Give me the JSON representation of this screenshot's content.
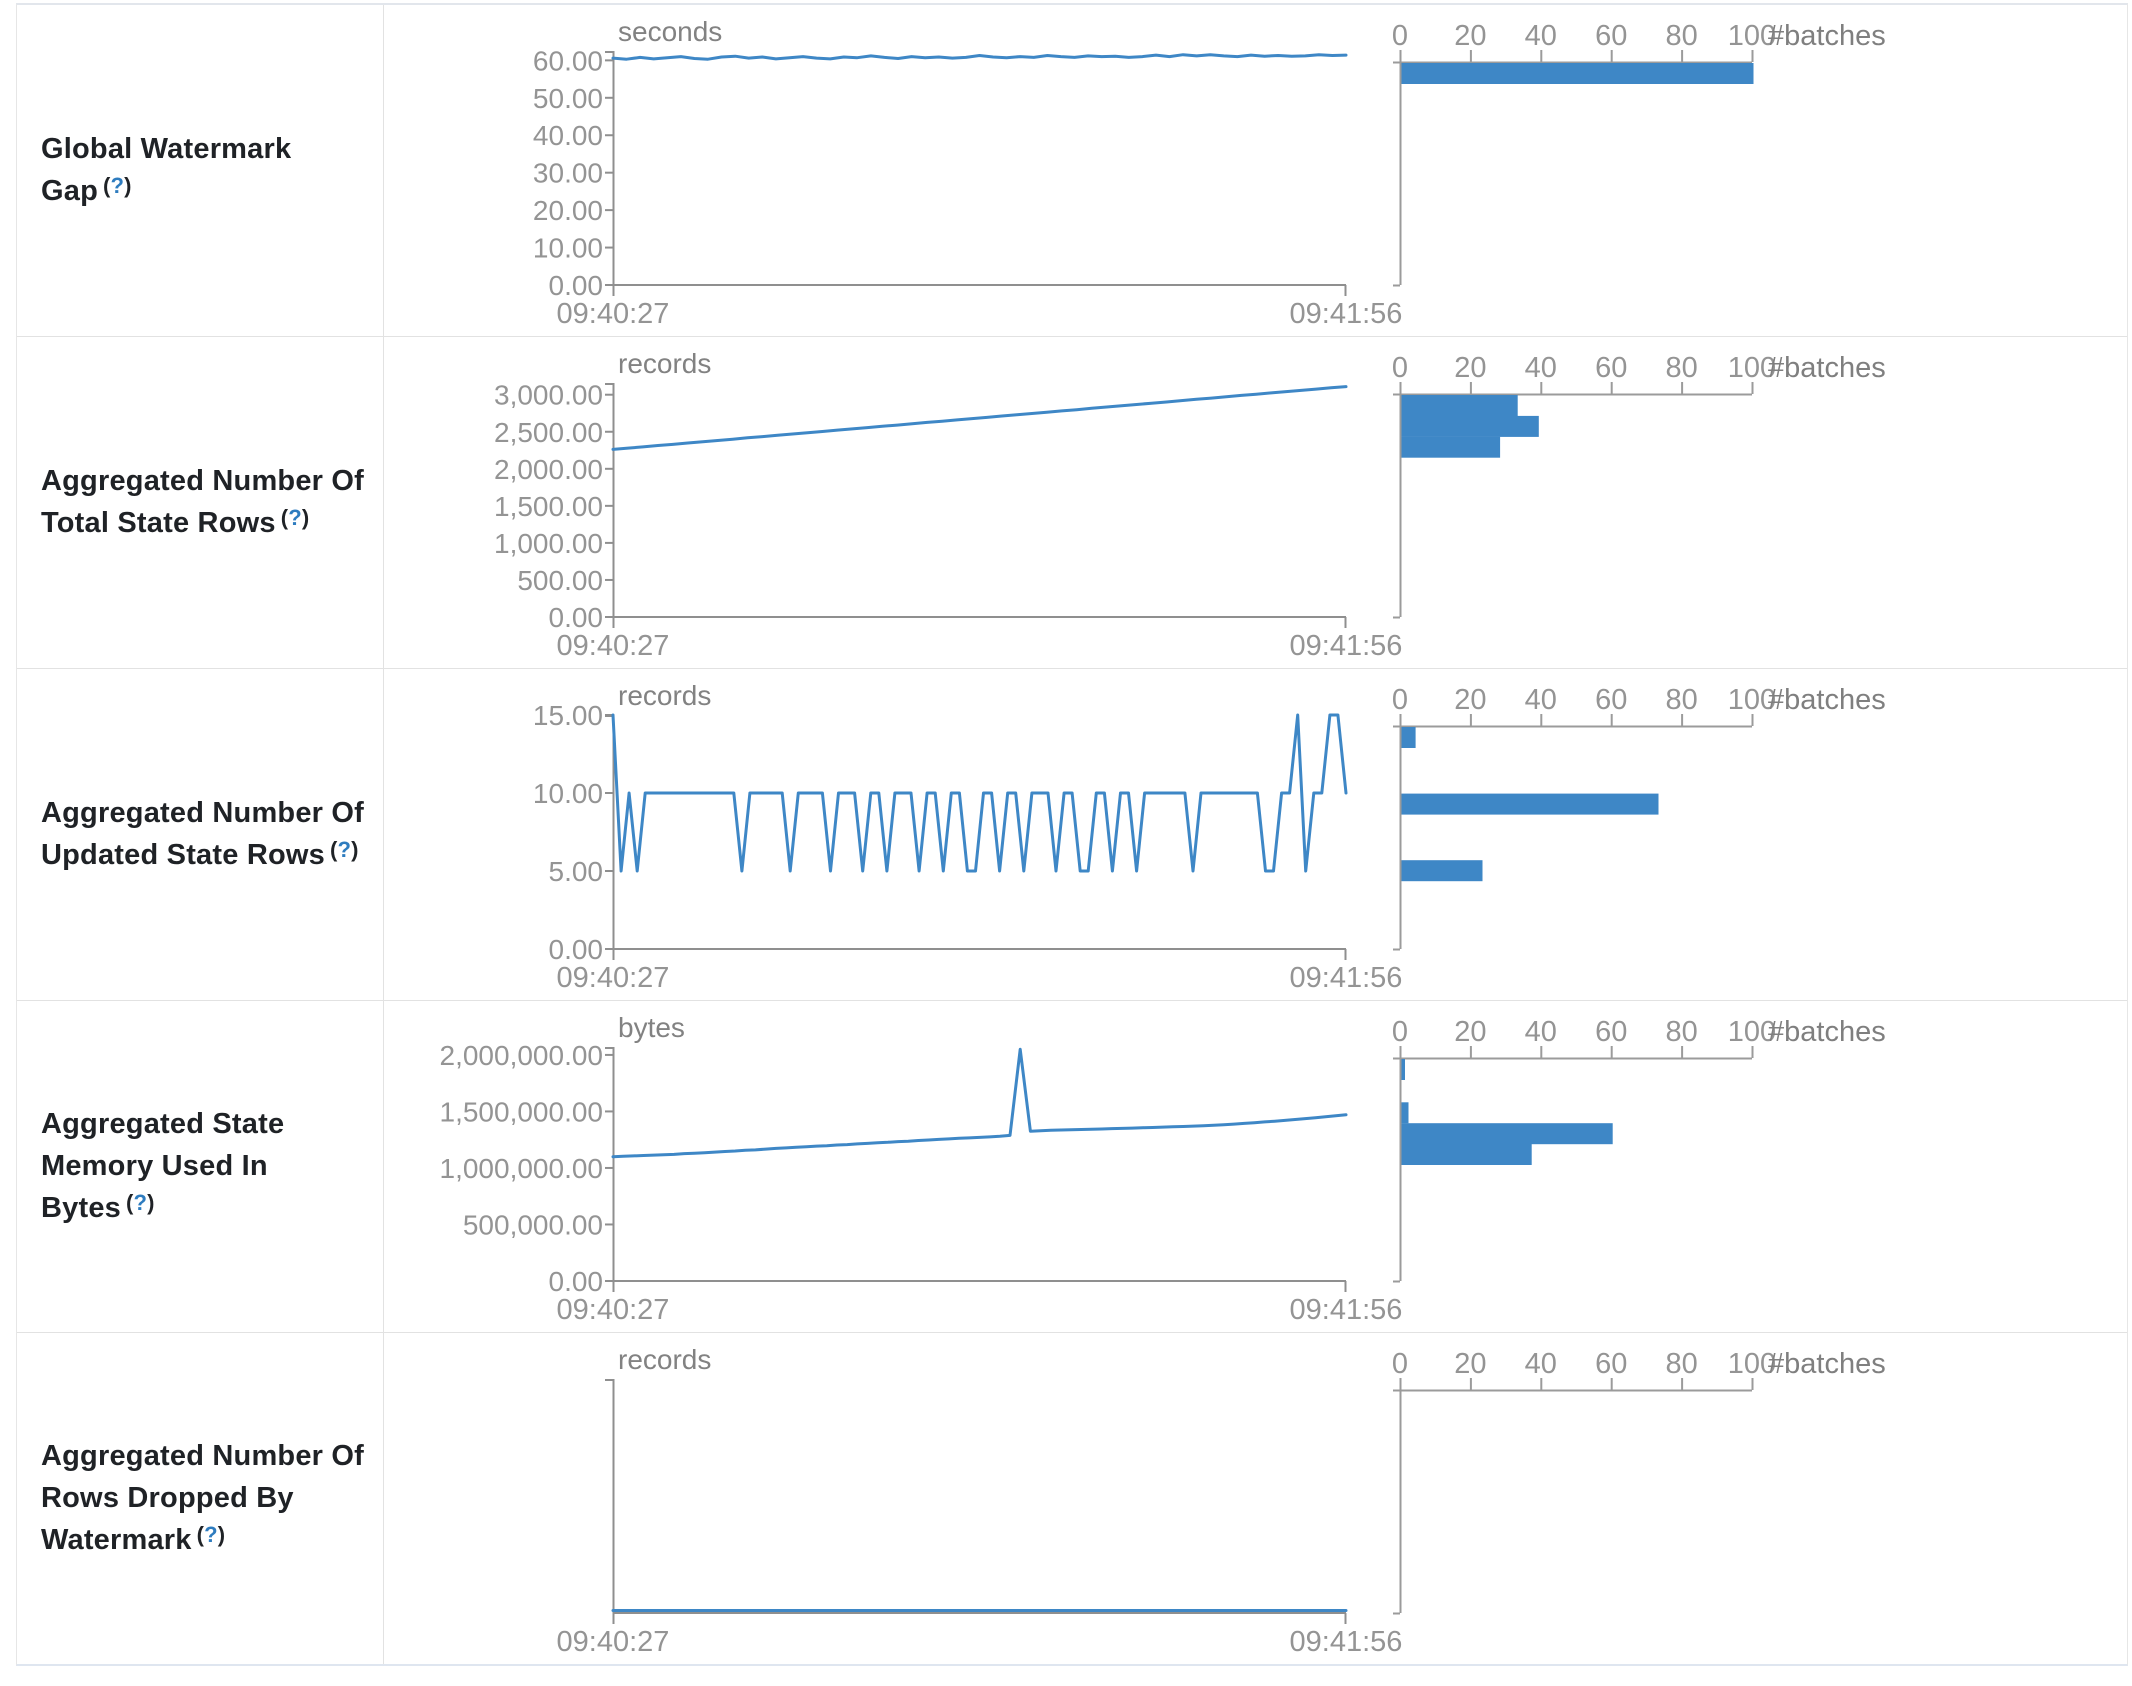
{
  "help": {
    "open": "(",
    "q": "?",
    "close": ")"
  },
  "hist_axis": {
    "values": [
      0,
      20,
      40,
      60,
      80,
      100
    ],
    "label": "#batches",
    "max": 100
  },
  "chart_data": [
    {
      "name": "Global Watermark Gap",
      "timeline": {
        "type": "line",
        "unit": "seconds",
        "x_start": "09:40:27",
        "x_end": "09:41:56",
        "y_axis_max": 62.5,
        "y_ticks": [
          {
            "v": 60,
            "t": "60.00"
          },
          {
            "v": 50,
            "t": "50.00"
          },
          {
            "v": 40,
            "t": "40.00"
          },
          {
            "v": 30,
            "t": "30.00"
          },
          {
            "v": 20,
            "t": "20.00"
          },
          {
            "v": 10,
            "t": "10.00"
          },
          {
            "v": 0,
            "t": "0.00"
          }
        ],
        "values": [
          60.6,
          60.3,
          60.8,
          60.4,
          60.7,
          61.0,
          60.5,
          60.3,
          60.9,
          61.1,
          60.6,
          60.9,
          60.4,
          60.7,
          61.0,
          60.6,
          60.4,
          60.9,
          60.7,
          61.2,
          60.8,
          60.5,
          61.0,
          60.7,
          60.9,
          60.6,
          60.8,
          61.3,
          60.9,
          60.7,
          61.0,
          60.8,
          61.3,
          61.0,
          60.8,
          61.2,
          61.0,
          61.1,
          60.8,
          61.0,
          61.4,
          61.0,
          61.5,
          61.2,
          61.5,
          61.2,
          61.0,
          61.4,
          61.1,
          61.3,
          61.1,
          61.2,
          61.5,
          61.3,
          61.4
        ]
      },
      "histogram": {
        "type": "bar",
        "x_label": "#batches",
        "bars": [
          {
            "batches": 100,
            "pos": 0.0
          }
        ]
      }
    },
    {
      "name": "Aggregated Number Of Total State Rows",
      "timeline": {
        "type": "line",
        "unit": "records",
        "x_start": "09:40:27",
        "x_end": "09:41:56",
        "y_axis_max": 3158,
        "y_ticks": [
          {
            "v": 3000,
            "t": "3,000.00"
          },
          {
            "v": 2500,
            "t": "2,500.00"
          },
          {
            "v": 2000,
            "t": "2,000.00"
          },
          {
            "v": 1500,
            "t": "1,500.00"
          },
          {
            "v": 1000,
            "t": "1,000.00"
          },
          {
            "v": 500,
            "t": "500.00"
          },
          {
            "v": 0,
            "t": "0.00"
          }
        ],
        "values": [
          2262,
          2279,
          2296,
          2314,
          2330,
          2348,
          2366,
          2382,
          2400,
          2418,
          2434,
          2452,
          2470,
          2486,
          2504,
          2522,
          2538,
          2556,
          2574,
          2590,
          2608,
          2626,
          2642,
          2660,
          2678,
          2694,
          2712,
          2730,
          2746,
          2764,
          2782,
          2798,
          2816,
          2834,
          2850,
          2868,
          2886,
          2902,
          2920,
          2938,
          2954,
          2972,
          2990,
          3006,
          3024,
          3042,
          3058,
          3076,
          3094,
          3110
        ]
      },
      "histogram": {
        "type": "bar",
        "x_label": "#batches",
        "bars": [
          {
            "batches": 33,
            "pos": 0.0
          },
          {
            "batches": 39,
            "pos": 0.094
          },
          {
            "batches": 28,
            "pos": 0.188
          }
        ]
      }
    },
    {
      "name": "Aggregated Number Of Updated State Rows",
      "timeline": {
        "type": "line",
        "unit": "records",
        "x_start": "09:40:27",
        "x_end": "09:41:56",
        "y_axis_max": 15,
        "y_ticks": [
          {
            "v": 15,
            "t": "15.00"
          },
          {
            "v": 10,
            "t": "10.00"
          },
          {
            "v": 5,
            "t": "5.00"
          },
          {
            "v": 0,
            "t": "0.00"
          }
        ],
        "values": [
          15,
          5,
          10,
          5,
          10,
          10,
          10,
          10,
          10,
          10,
          10,
          10,
          10,
          10,
          10,
          10,
          5,
          10,
          10,
          10,
          10,
          10,
          5,
          10,
          10,
          10,
          10,
          5,
          10,
          10,
          10,
          5,
          10,
          10,
          5,
          10,
          10,
          10,
          5,
          10,
          10,
          5,
          10,
          10,
          5,
          5,
          10,
          10,
          5,
          10,
          10,
          5,
          10,
          10,
          10,
          5,
          10,
          10,
          5,
          5,
          10,
          10,
          5,
          10,
          10,
          5,
          10,
          10,
          10,
          10,
          10,
          10,
          5,
          10,
          10,
          10,
          10,
          10,
          10,
          10,
          10,
          5,
          5,
          10,
          10,
          15,
          5,
          10,
          10,
          15,
          15,
          10
        ]
      },
      "histogram": {
        "type": "bar",
        "x_label": "#batches",
        "bars": [
          {
            "batches": 4,
            "pos": 0.0
          },
          {
            "batches": 73,
            "pos": 0.3
          },
          {
            "batches": 23,
            "pos": 0.6
          }
        ]
      }
    },
    {
      "name": "Aggregated State Memory Used In Bytes",
      "timeline": {
        "type": "line",
        "unit": "bytes",
        "x_start": "09:40:27",
        "x_end": "09:41:56",
        "y_axis_max": 2070000,
        "y_ticks": [
          {
            "v": 2000000,
            "t": "2,000,000.00"
          },
          {
            "v": 1500000,
            "t": "1,500,000.00"
          },
          {
            "v": 1000000,
            "t": "1,000,000.00"
          },
          {
            "v": 500000,
            "t": "500,000.00"
          },
          {
            "v": 0,
            "t": "0.00"
          }
        ],
        "values": [
          1100000,
          1104000,
          1107000,
          1110000,
          1114000,
          1117000,
          1120000,
          1127000,
          1130000,
          1134000,
          1140000,
          1146000,
          1150000,
          1157000,
          1160000,
          1167000,
          1173000,
          1177000,
          1183000,
          1187000,
          1193000,
          1197000,
          1203000,
          1207000,
          1213000,
          1217000,
          1223000,
          1227000,
          1233000,
          1237000,
          1243000,
          1247000,
          1253000,
          1257000,
          1262000,
          1266000,
          1270000,
          1275000,
          1280000,
          1288000,
          2050000,
          1325000,
          1330000,
          1333000,
          1336000,
          1338000,
          1340000,
          1343000,
          1345000,
          1348000,
          1350000,
          1353000,
          1356000,
          1358000,
          1361000,
          1364000,
          1367000,
          1370000,
          1374000,
          1378000,
          1383000,
          1388000,
          1394000,
          1400000,
          1407000,
          1414000,
          1421000,
          1429000,
          1437000,
          1445000,
          1453000,
          1461000,
          1470000
        ]
      },
      "histogram": {
        "type": "bar",
        "x_label": "#batches",
        "bars": [
          {
            "batches": 1,
            "pos": 0.0
          },
          {
            "batches": 2,
            "pos": 0.195
          },
          {
            "batches": 60,
            "pos": 0.289
          },
          {
            "batches": 37,
            "pos": 0.383
          }
        ]
      }
    },
    {
      "name": "Aggregated Number Of Rows Dropped By Watermark",
      "timeline": {
        "type": "line",
        "unit": "records",
        "x_start": "09:40:27",
        "x_end": "09:41:56",
        "y_axis_max": 1,
        "y_ticks": [],
        "values": [
          0,
          0,
          0,
          0,
          0,
          0,
          0,
          0,
          0,
          0
        ]
      },
      "histogram": {
        "type": "bar",
        "x_label": "#batches",
        "bars": []
      }
    }
  ]
}
